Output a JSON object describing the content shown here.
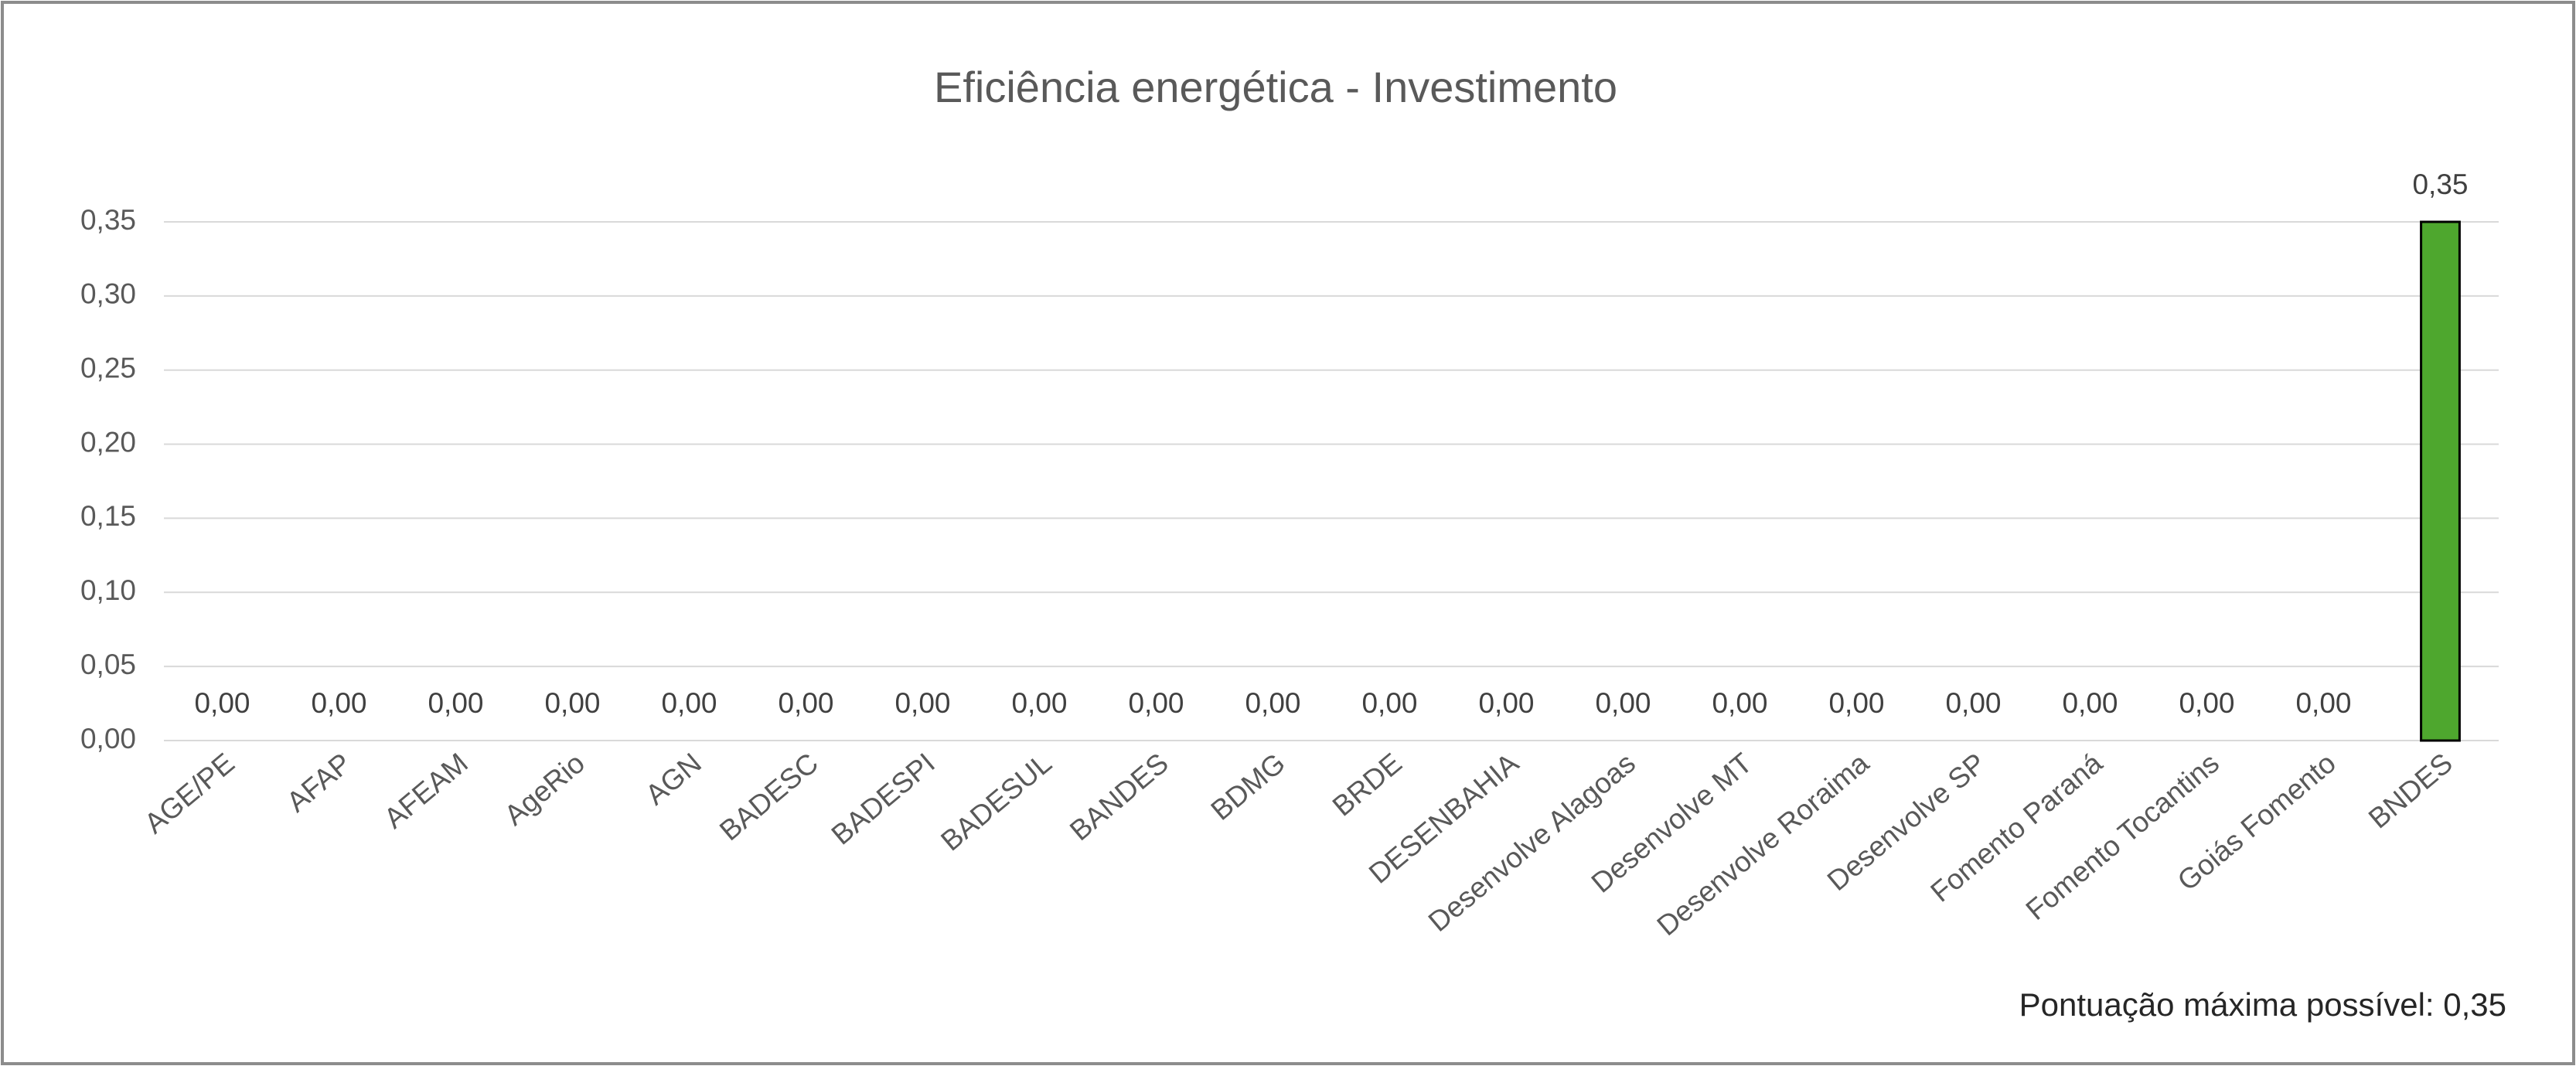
{
  "chart_data": {
    "type": "bar",
    "title": "Eficiência energética - Investimento",
    "categories": [
      "AGE/PE",
      "AFAP",
      "AFEAM",
      "AgeRio",
      "AGN",
      "BADESC",
      "BADESPI",
      "BADESUL",
      "BANDES",
      "BDMG",
      "BRDE",
      "DESENBAHIA",
      "Desenvolve Alagoas",
      "Desenvolve MT",
      "Desenvolve Roraima",
      "Desenvolve SP",
      "Fomento Paraná",
      "Fomento Tocantins",
      "Goiás Fomento",
      "BNDES"
    ],
    "values": [
      0,
      0,
      0,
      0,
      0,
      0,
      0,
      0,
      0,
      0,
      0,
      0,
      0,
      0,
      0,
      0,
      0,
      0,
      0,
      0.35
    ],
    "value_labels": [
      "0,00",
      "0,00",
      "0,00",
      "0,00",
      "0,00",
      "0,00",
      "0,00",
      "0,00",
      "0,00",
      "0,00",
      "0,00",
      "0,00",
      "0,00",
      "0,00",
      "0,00",
      "0,00",
      "0,00",
      "0,00",
      "0,00",
      "0,35"
    ],
    "color": "#4ea72e",
    "ylim": [
      0,
      0.35
    ],
    "yticks": [
      {
        "value": 0,
        "label": "0,00"
      },
      {
        "value": 0.05,
        "label": "0,05"
      },
      {
        "value": 0.1,
        "label": "0,10"
      },
      {
        "value": 0.15,
        "label": "0,15"
      },
      {
        "value": 0.2,
        "label": "0,20"
      },
      {
        "value": 0.25,
        "label": "0,25"
      },
      {
        "value": 0.3,
        "label": "0,30"
      },
      {
        "value": 0.35,
        "label": "0,35"
      }
    ],
    "grid": true,
    "annotation": "Pontuação máxima possível:  0,35"
  }
}
